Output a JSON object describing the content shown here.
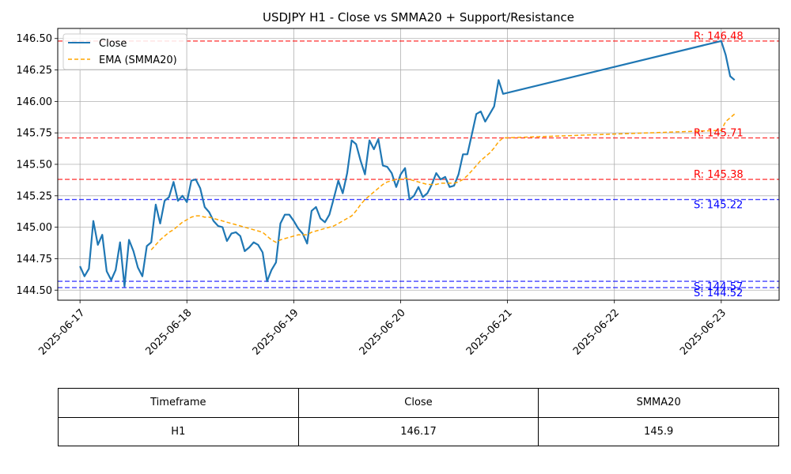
{
  "chart_data": {
    "type": "line",
    "title": "USDJPY H1 - Close vs SMMA20 + Support/Resistance",
    "xlabel": "",
    "ylabel": "",
    "ylim": [
      144.42,
      146.58
    ],
    "xlim": [
      "2025-06-16T19:00",
      "2025-06-23T13:00"
    ],
    "grid": true,
    "legend_position": "top-left",
    "x_ticks": [
      "2025-06-17",
      "2025-06-18",
      "2025-06-19",
      "2025-06-20",
      "2025-06-21",
      "2025-06-22",
      "2025-06-23"
    ],
    "y_ticks": [
      "144.50",
      "144.75",
      "145.00",
      "145.25",
      "145.50",
      "145.75",
      "146.00",
      "146.25",
      "146.50"
    ],
    "series": [
      {
        "name": "Close",
        "style": "solid",
        "color": "#1f77b4",
        "points": [
          [
            "2025-06-17T00:00",
            144.69
          ],
          [
            "2025-06-17T01:00",
            144.61
          ],
          [
            "2025-06-17T02:00",
            144.67
          ],
          [
            "2025-06-17T03:00",
            145.05
          ],
          [
            "2025-06-17T04:00",
            144.86
          ],
          [
            "2025-06-17T05:00",
            144.94
          ],
          [
            "2025-06-17T06:00",
            144.65
          ],
          [
            "2025-06-17T07:00",
            144.58
          ],
          [
            "2025-06-17T08:00",
            144.66
          ],
          [
            "2025-06-17T09:00",
            144.88
          ],
          [
            "2025-06-17T10:00",
            144.53
          ],
          [
            "2025-06-17T11:00",
            144.9
          ],
          [
            "2025-06-17T12:00",
            144.81
          ],
          [
            "2025-06-17T13:00",
            144.68
          ],
          [
            "2025-06-17T14:00",
            144.61
          ],
          [
            "2025-06-17T15:00",
            144.85
          ],
          [
            "2025-06-17T16:00",
            144.88
          ],
          [
            "2025-06-17T17:00",
            145.18
          ],
          [
            "2025-06-17T18:00",
            145.03
          ],
          [
            "2025-06-17T19:00",
            145.21
          ],
          [
            "2025-06-17T20:00",
            145.24
          ],
          [
            "2025-06-17T21:00",
            145.36
          ],
          [
            "2025-06-17T22:00",
            145.21
          ],
          [
            "2025-06-17T23:00",
            145.25
          ],
          [
            "2025-06-18T00:00",
            145.2
          ],
          [
            "2025-06-18T01:00",
            145.37
          ],
          [
            "2025-06-18T02:00",
            145.38
          ],
          [
            "2025-06-18T03:00",
            145.31
          ],
          [
            "2025-06-18T04:00",
            145.16
          ],
          [
            "2025-06-18T05:00",
            145.12
          ],
          [
            "2025-06-18T06:00",
            145.05
          ],
          [
            "2025-06-18T07:00",
            145.01
          ],
          [
            "2025-06-18T08:00",
            145.0
          ],
          [
            "2025-06-18T09:00",
            144.89
          ],
          [
            "2025-06-18T10:00",
            144.95
          ],
          [
            "2025-06-18T11:00",
            144.96
          ],
          [
            "2025-06-18T12:00",
            144.93
          ],
          [
            "2025-06-18T13:00",
            144.81
          ],
          [
            "2025-06-18T14:00",
            144.84
          ],
          [
            "2025-06-18T15:00",
            144.88
          ],
          [
            "2025-06-18T16:00",
            144.86
          ],
          [
            "2025-06-18T17:00",
            144.8
          ],
          [
            "2025-06-18T18:00",
            144.57
          ],
          [
            "2025-06-18T19:00",
            144.66
          ],
          [
            "2025-06-18T20:00",
            144.72
          ],
          [
            "2025-06-18T21:00",
            145.03
          ],
          [
            "2025-06-18T22:00",
            145.1
          ],
          [
            "2025-06-18T23:00",
            145.1
          ],
          [
            "2025-06-19T00:00",
            145.05
          ],
          [
            "2025-06-19T01:00",
            144.99
          ],
          [
            "2025-06-19T02:00",
            144.95
          ],
          [
            "2025-06-19T03:00",
            144.87
          ],
          [
            "2025-06-19T04:00",
            145.13
          ],
          [
            "2025-06-19T05:00",
            145.16
          ],
          [
            "2025-06-19T06:00",
            145.07
          ],
          [
            "2025-06-19T07:00",
            145.04
          ],
          [
            "2025-06-19T08:00",
            145.1
          ],
          [
            "2025-06-19T09:00",
            145.23
          ],
          [
            "2025-06-19T10:00",
            145.37
          ],
          [
            "2025-06-19T11:00",
            145.27
          ],
          [
            "2025-06-19T12:00",
            145.43
          ],
          [
            "2025-06-19T13:00",
            145.69
          ],
          [
            "2025-06-19T14:00",
            145.66
          ],
          [
            "2025-06-19T15:00",
            145.53
          ],
          [
            "2025-06-19T16:00",
            145.42
          ],
          [
            "2025-06-19T17:00",
            145.69
          ],
          [
            "2025-06-19T18:00",
            145.62
          ],
          [
            "2025-06-19T19:00",
            145.7
          ],
          [
            "2025-06-19T20:00",
            145.49
          ],
          [
            "2025-06-19T21:00",
            145.48
          ],
          [
            "2025-06-19T22:00",
            145.43
          ],
          [
            "2025-06-19T23:00",
            145.32
          ],
          [
            "2025-06-20T00:00",
            145.42
          ],
          [
            "2025-06-20T01:00",
            145.47
          ],
          [
            "2025-06-20T02:00",
            145.22
          ],
          [
            "2025-06-20T03:00",
            145.25
          ],
          [
            "2025-06-20T04:00",
            145.32
          ],
          [
            "2025-06-20T05:00",
            145.24
          ],
          [
            "2025-06-20T06:00",
            145.27
          ],
          [
            "2025-06-20T07:00",
            145.34
          ],
          [
            "2025-06-20T08:00",
            145.43
          ],
          [
            "2025-06-20T09:00",
            145.38
          ],
          [
            "2025-06-20T10:00",
            145.4
          ],
          [
            "2025-06-20T11:00",
            145.32
          ],
          [
            "2025-06-20T12:00",
            145.33
          ],
          [
            "2025-06-20T13:00",
            145.42
          ],
          [
            "2025-06-20T14:00",
            145.58
          ],
          [
            "2025-06-20T15:00",
            145.58
          ],
          [
            "2025-06-20T16:00",
            145.74
          ],
          [
            "2025-06-20T17:00",
            145.9
          ],
          [
            "2025-06-20T18:00",
            145.92
          ],
          [
            "2025-06-20T19:00",
            145.84
          ],
          [
            "2025-06-20T20:00",
            145.9
          ],
          [
            "2025-06-20T21:00",
            145.96
          ],
          [
            "2025-06-20T22:00",
            146.17
          ],
          [
            "2025-06-20T23:00",
            146.06
          ],
          [
            "2025-06-23T00:00",
            146.48
          ],
          [
            "2025-06-23T01:00",
            146.37
          ],
          [
            "2025-06-23T02:00",
            146.2
          ],
          [
            "2025-06-23T03:00",
            146.17
          ]
        ]
      },
      {
        "name": "EMA (SMMA20)",
        "style": "dashed",
        "color": "#ffa500",
        "points": [
          [
            "2025-06-17T16:00",
            144.82
          ],
          [
            "2025-06-17T17:00",
            144.86
          ],
          [
            "2025-06-17T18:00",
            144.9
          ],
          [
            "2025-06-17T19:00",
            144.93
          ],
          [
            "2025-06-17T20:00",
            144.96
          ],
          [
            "2025-06-17T21:00",
            144.98
          ],
          [
            "2025-06-17T22:00",
            145.01
          ],
          [
            "2025-06-17T23:00",
            145.04
          ],
          [
            "2025-06-18T00:00",
            145.06
          ],
          [
            "2025-06-18T01:00",
            145.08
          ],
          [
            "2025-06-18T02:00",
            145.09
          ],
          [
            "2025-06-18T03:00",
            145.09
          ],
          [
            "2025-06-18T04:00",
            145.08
          ],
          [
            "2025-06-18T05:00",
            145.08
          ],
          [
            "2025-06-18T06:00",
            145.07
          ],
          [
            "2025-06-18T07:00",
            145.06
          ],
          [
            "2025-06-18T08:00",
            145.05
          ],
          [
            "2025-06-18T09:00",
            145.04
          ],
          [
            "2025-06-18T10:00",
            145.03
          ],
          [
            "2025-06-18T11:00",
            145.02
          ],
          [
            "2025-06-18T12:00",
            145.01
          ],
          [
            "2025-06-18T13:00",
            145.0
          ],
          [
            "2025-06-18T14:00",
            144.99
          ],
          [
            "2025-06-18T15:00",
            144.98
          ],
          [
            "2025-06-18T16:00",
            144.97
          ],
          [
            "2025-06-18T17:00",
            144.96
          ],
          [
            "2025-06-18T18:00",
            144.93
          ],
          [
            "2025-06-18T19:00",
            144.9
          ],
          [
            "2025-06-18T20:00",
            144.88
          ],
          [
            "2025-06-18T21:00",
            144.9
          ],
          [
            "2025-06-18T22:00",
            144.91
          ],
          [
            "2025-06-18T23:00",
            144.92
          ],
          [
            "2025-06-19T00:00",
            144.93
          ],
          [
            "2025-06-19T01:00",
            144.94
          ],
          [
            "2025-06-19T02:00",
            144.94
          ],
          [
            "2025-06-19T03:00",
            144.94
          ],
          [
            "2025-06-19T04:00",
            144.96
          ],
          [
            "2025-06-19T05:00",
            144.97
          ],
          [
            "2025-06-19T06:00",
            144.98
          ],
          [
            "2025-06-19T07:00",
            144.99
          ],
          [
            "2025-06-19T08:00",
            145.0
          ],
          [
            "2025-06-19T09:00",
            145.01
          ],
          [
            "2025-06-19T10:00",
            145.03
          ],
          [
            "2025-06-19T11:00",
            145.05
          ],
          [
            "2025-06-19T12:00",
            145.07
          ],
          [
            "2025-06-19T13:00",
            145.09
          ],
          [
            "2025-06-19T14:00",
            145.13
          ],
          [
            "2025-06-19T15:00",
            145.18
          ],
          [
            "2025-06-19T16:00",
            145.22
          ],
          [
            "2025-06-19T17:00",
            145.25
          ],
          [
            "2025-06-19T18:00",
            145.28
          ],
          [
            "2025-06-19T19:00",
            145.31
          ],
          [
            "2025-06-19T20:00",
            145.34
          ],
          [
            "2025-06-19T21:00",
            145.36
          ],
          [
            "2025-06-19T22:00",
            145.37
          ],
          [
            "2025-06-19T23:00",
            145.38
          ],
          [
            "2025-06-20T00:00",
            145.38
          ],
          [
            "2025-06-20T01:00",
            145.39
          ],
          [
            "2025-06-20T02:00",
            145.38
          ],
          [
            "2025-06-20T03:00",
            145.37
          ],
          [
            "2025-06-20T04:00",
            145.36
          ],
          [
            "2025-06-20T05:00",
            145.35
          ],
          [
            "2025-06-20T06:00",
            145.34
          ],
          [
            "2025-06-20T07:00",
            145.34
          ],
          [
            "2025-06-20T08:00",
            145.34
          ],
          [
            "2025-06-20T09:00",
            145.35
          ],
          [
            "2025-06-20T10:00",
            145.35
          ],
          [
            "2025-06-20T11:00",
            145.35
          ],
          [
            "2025-06-20T12:00",
            145.35
          ],
          [
            "2025-06-20T13:00",
            145.36
          ],
          [
            "2025-06-20T14:00",
            145.38
          ],
          [
            "2025-06-20T15:00",
            145.41
          ],
          [
            "2025-06-20T16:00",
            145.45
          ],
          [
            "2025-06-20T17:00",
            145.49
          ],
          [
            "2025-06-20T18:00",
            145.53
          ],
          [
            "2025-06-20T19:00",
            145.56
          ],
          [
            "2025-06-20T20:00",
            145.59
          ],
          [
            "2025-06-20T21:00",
            145.63
          ],
          [
            "2025-06-20T22:00",
            145.68
          ],
          [
            "2025-06-20T23:00",
            145.71
          ],
          [
            "2025-06-23T00:00",
            145.77
          ],
          [
            "2025-06-23T01:00",
            145.84
          ],
          [
            "2025-06-23T02:00",
            145.87
          ],
          [
            "2025-06-23T03:00",
            145.9
          ]
        ]
      }
    ],
    "levels": [
      {
        "kind": "resistance",
        "value": 146.48,
        "label": "R: 146.48",
        "color": "#ff0000"
      },
      {
        "kind": "resistance",
        "value": 145.71,
        "label": "R: 145.71",
        "color": "#ff0000"
      },
      {
        "kind": "resistance",
        "value": 145.38,
        "label": "R: 145.38",
        "color": "#ff0000"
      },
      {
        "kind": "support",
        "value": 145.22,
        "label": "S: 145.22",
        "color": "#0000ff"
      },
      {
        "kind": "support",
        "value": 144.57,
        "label": "S: 144.57",
        "color": "#0000ff"
      },
      {
        "kind": "support",
        "value": 144.52,
        "label": "S: 144.52",
        "color": "#0000ff"
      }
    ]
  },
  "table": {
    "headers": [
      "Timeframe",
      "Close",
      "SMMA20"
    ],
    "rows": [
      [
        "H1",
        "146.17",
        "145.9"
      ]
    ]
  }
}
